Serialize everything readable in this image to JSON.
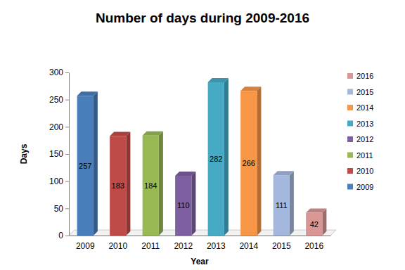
{
  "chart_data": {
    "type": "bar",
    "title": "Number of days during 2009-2016",
    "x_label": "Year",
    "y_label": "Days",
    "categories": [
      "2009",
      "2010",
      "2011",
      "2012",
      "2013",
      "2014",
      "2015",
      "2016"
    ],
    "values": [
      257,
      183,
      184,
      110,
      282,
      266,
      111,
      42
    ],
    "colors": [
      "#4a7ebb",
      "#be4b48",
      "#98b954",
      "#7d60a0",
      "#46aac5",
      "#f79646",
      "#a4b7dd",
      "#da9694"
    ],
    "ylim": [
      0,
      300
    ],
    "yticks": [
      0,
      50,
      100,
      150,
      200,
      250,
      300
    ],
    "grid": false,
    "data_labels": true,
    "legend": "right"
  }
}
